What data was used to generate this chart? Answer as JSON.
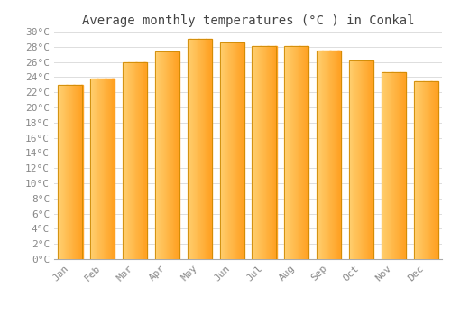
{
  "title": "Average monthly temperatures (°C ) in Conkal",
  "months": [
    "Jan",
    "Feb",
    "Mar",
    "Apr",
    "May",
    "Jun",
    "Jul",
    "Aug",
    "Sep",
    "Oct",
    "Nov",
    "Dec"
  ],
  "values": [
    23.0,
    23.8,
    25.9,
    27.4,
    29.0,
    28.6,
    28.1,
    28.1,
    27.5,
    26.2,
    24.6,
    23.5
  ],
  "bar_color_left": "#FFD070",
  "bar_color_right": "#FFA020",
  "bar_edge_color": "#CC8800",
  "background_color": "#FFFFFF",
  "grid_color": "#DDDDDD",
  "tick_label_color": "#888888",
  "title_color": "#444444",
  "ylim": [
    0,
    30
  ],
  "ytick_step": 2,
  "title_fontsize": 10,
  "tick_fontsize": 8
}
